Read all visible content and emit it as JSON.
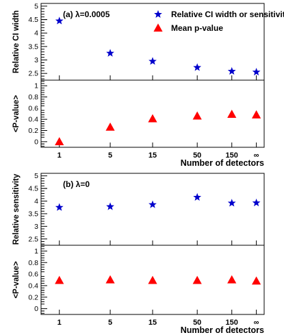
{
  "chart_data": [
    {
      "type": "scatter",
      "ylabel": "Relative CI width",
      "annotation": "(a)  λ=0.0005",
      "categories": [
        "1",
        "5",
        "15",
        "50",
        "150",
        "∞"
      ],
      "ylim": [
        2.25,
        5.1
      ],
      "yticks": [
        "2.5",
        "3",
        "3.5",
        "4",
        "4.5",
        "5"
      ],
      "series": [
        {
          "name": "Relative CI width or sensitivity",
          "marker": "star",
          "color": "#0000cc",
          "values": [
            4.45,
            3.25,
            2.95,
            2.72,
            2.58,
            2.55
          ]
        }
      ],
      "legend": "top-right"
    },
    {
      "type": "scatter",
      "ylabel": "<P-value>",
      "xlabel": "Number of detectors",
      "categories": [
        "1",
        "5",
        "15",
        "50",
        "150",
        "∞"
      ],
      "ylim": [
        -0.1,
        1.1
      ],
      "yticks": [
        "0",
        "0.2",
        "0.4",
        "0.6",
        "0.8",
        "1"
      ],
      "series": [
        {
          "name": "Mean p-value",
          "marker": "triangle",
          "color": "#ff0000",
          "values": [
            0.0,
            0.26,
            0.41,
            0.46,
            0.49,
            0.48
          ]
        }
      ]
    },
    {
      "type": "scatter",
      "ylabel": "Relative sensitivity",
      "annotation": "(b)  λ=0",
      "categories": [
        "1",
        "5",
        "15",
        "50",
        "150",
        "∞"
      ],
      "ylim": [
        2.25,
        5.1
      ],
      "yticks": [
        "2.5",
        "3",
        "3.5",
        "4",
        "4.5",
        "5"
      ],
      "series": [
        {
          "marker": "star",
          "color": "#0000cc",
          "values": [
            3.75,
            3.78,
            3.86,
            4.15,
            3.92,
            3.93
          ]
        }
      ]
    },
    {
      "type": "scatter",
      "ylabel": "<P-value>",
      "xlabel": "Number of detectors",
      "categories": [
        "1",
        "5",
        "15",
        "50",
        "150",
        "∞"
      ],
      "ylim": [
        -0.1,
        1.1
      ],
      "yticks": [
        "0",
        "0.2",
        "0.4",
        "0.6",
        "0.8",
        "1"
      ],
      "series": [
        {
          "marker": "triangle",
          "color": "#ff0000",
          "values": [
            0.49,
            0.5,
            0.49,
            0.49,
            0.5,
            0.48
          ]
        }
      ]
    }
  ]
}
